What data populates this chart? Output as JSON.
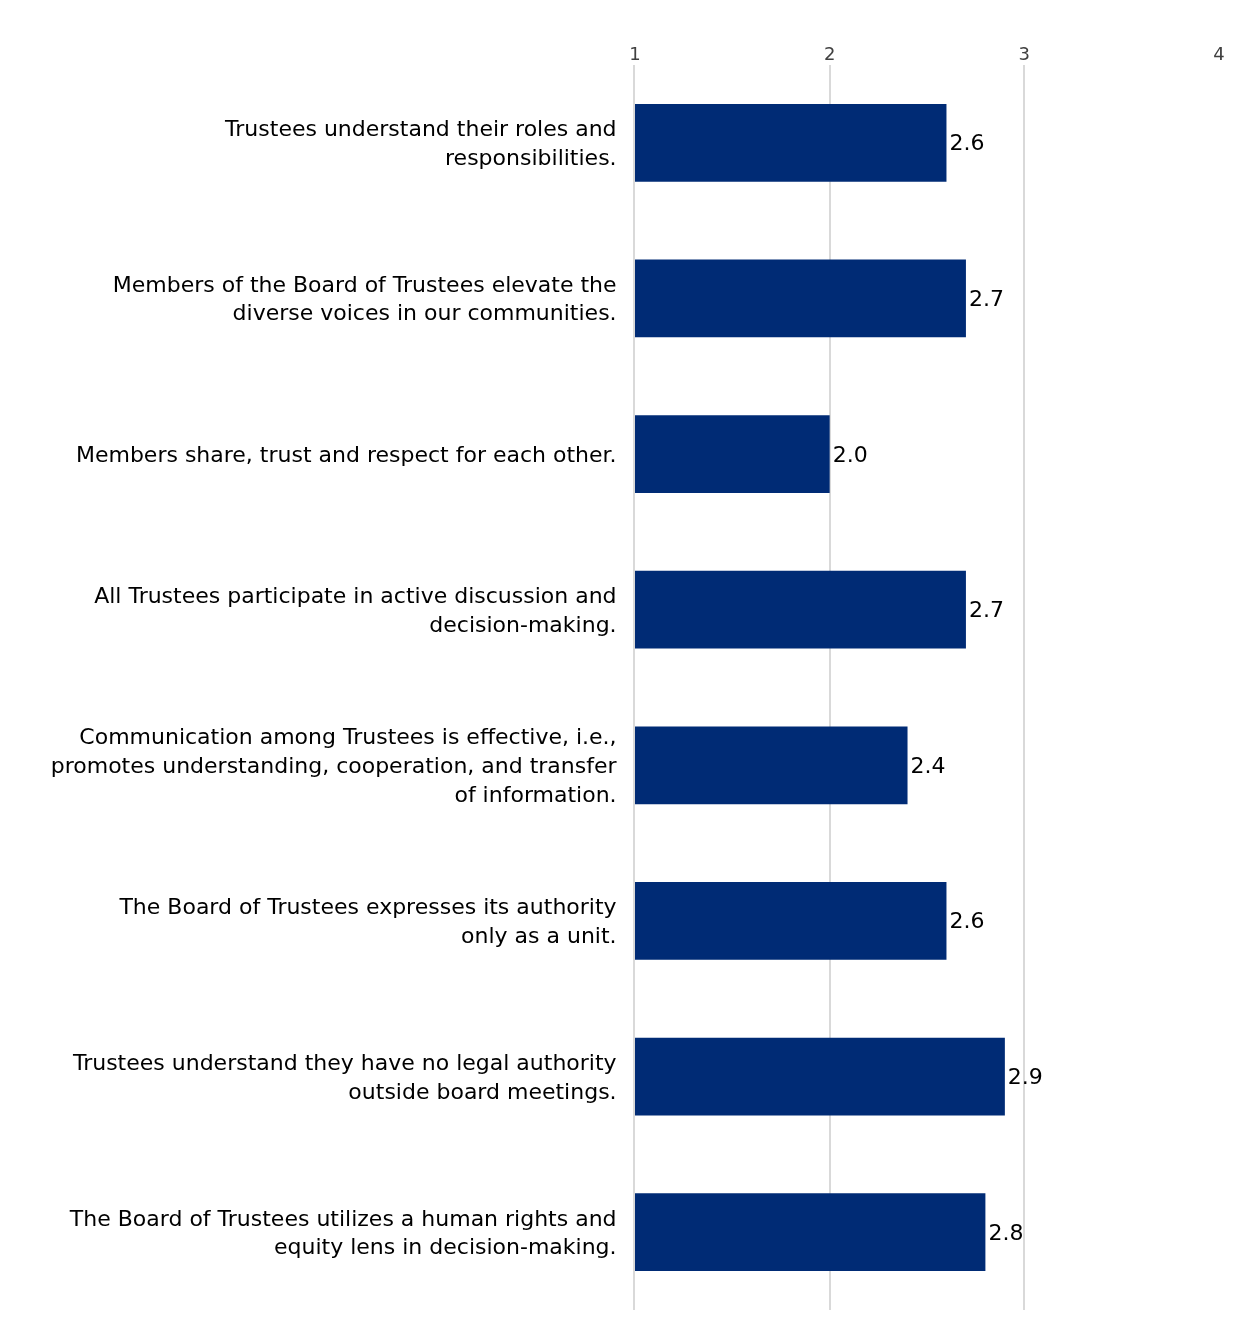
{
  "chart_data": {
    "type": "bar",
    "orientation": "horizontal",
    "categories": [
      "Trustees understand their roles and responsibilities.",
      "Members of the Board of Trustees elevate the diverse voices in our communities.",
      "Members share, trust and respect for each other.",
      "All Trustees participate in active discussion and decision-making.",
      "Communication among Trustees is effective, i.e., promotes understanding, cooperation, and transfer of information.",
      "The Board of Trustees expresses its authority only as a unit.",
      "Trustees understand they have no legal authority outside board meetings.",
      "The Board of Trustees utilizes a human rights and equity lens in decision-making."
    ],
    "values": [
      2.6,
      2.7,
      2.0,
      2.7,
      2.4,
      2.6,
      2.9,
      2.8
    ],
    "value_labels": [
      "2.6",
      "2.7",
      "2.0",
      "2.7",
      "2.4",
      "2.6",
      "2.9",
      "2.8"
    ],
    "color": "#002b75",
    "xlim": [
      1,
      4
    ],
    "xticks": [
      1,
      2,
      3,
      4
    ],
    "grid": "x"
  }
}
